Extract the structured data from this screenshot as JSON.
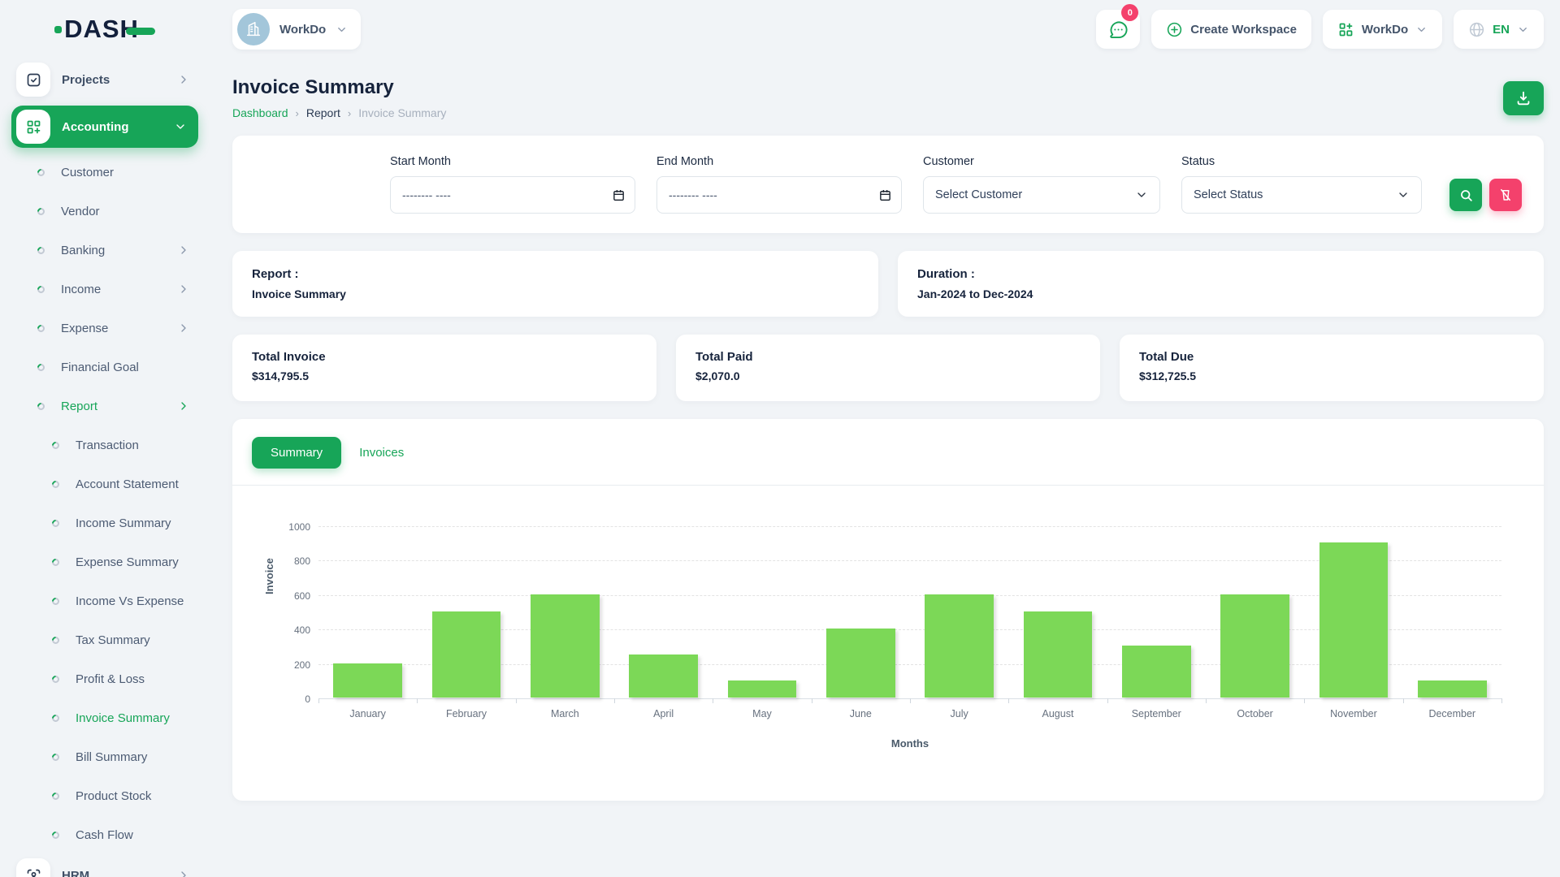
{
  "brand": {
    "name": "DASH"
  },
  "header": {
    "workspace_switcher": {
      "label": "WorkDo"
    },
    "messages": {
      "badge": "0"
    },
    "create_workspace": {
      "label": "Create Workspace"
    },
    "app_switcher": {
      "label": "WorkDo"
    },
    "language": {
      "label": "EN"
    }
  },
  "page": {
    "title": "Invoice Summary",
    "breadcrumb": [
      "Dashboard",
      "Report",
      "Invoice Summary"
    ]
  },
  "filters": {
    "start_month": {
      "label": "Start Month",
      "placeholder": "-------- ----"
    },
    "end_month": {
      "label": "End Month",
      "placeholder": "-------- ----"
    },
    "customer": {
      "label": "Customer",
      "value": "Select Customer"
    },
    "status": {
      "label": "Status",
      "value": "Select Status"
    }
  },
  "info_cards": {
    "report": {
      "label": "Report :",
      "value": "Invoice Summary"
    },
    "duration": {
      "label": "Duration :",
      "value": "Jan-2024 to Dec-2024"
    }
  },
  "totals": [
    {
      "label": "Total Invoice",
      "value": "$314,795.5"
    },
    {
      "label": "Total Paid",
      "value": "$2,070.0"
    },
    {
      "label": "Total Due",
      "value": "$312,725.5"
    }
  ],
  "tabs": [
    {
      "label": "Summary",
      "active": true
    },
    {
      "label": "Invoices",
      "active": false
    }
  ],
  "sidebar": {
    "items": [
      {
        "label": "Projects",
        "level": 0,
        "icon": "checkbox-icon",
        "chevron": "right",
        "active": false
      },
      {
        "label": "Accounting",
        "level": 0,
        "icon": "grid-plus-icon",
        "chevron": "down",
        "active": true
      },
      {
        "label": "Customer",
        "level": 1,
        "chevron": null,
        "active": false
      },
      {
        "label": "Vendor",
        "level": 1,
        "chevron": null,
        "active": false
      },
      {
        "label": "Banking",
        "level": 1,
        "chevron": "right",
        "active": false
      },
      {
        "label": "Income",
        "level": 1,
        "chevron": "right",
        "active": false
      },
      {
        "label": "Expense",
        "level": 1,
        "chevron": "right",
        "active": false
      },
      {
        "label": "Financial Goal",
        "level": 1,
        "chevron": null,
        "active": false
      },
      {
        "label": "Report",
        "level": 1,
        "chevron": "right",
        "active": true
      },
      {
        "label": "Transaction",
        "level": 2,
        "chevron": null,
        "active": false
      },
      {
        "label": "Account Statement",
        "level": 2,
        "chevron": null,
        "active": false
      },
      {
        "label": "Income Summary",
        "level": 2,
        "chevron": null,
        "active": false
      },
      {
        "label": "Expense Summary",
        "level": 2,
        "chevron": null,
        "active": false
      },
      {
        "label": "Income Vs Expense",
        "level": 2,
        "chevron": null,
        "active": false
      },
      {
        "label": "Tax Summary",
        "level": 2,
        "chevron": null,
        "active": false
      },
      {
        "label": "Profit & Loss",
        "level": 2,
        "chevron": null,
        "active": false
      },
      {
        "label": "Invoice Summary",
        "level": 2,
        "chevron": null,
        "active": true
      },
      {
        "label": "Bill Summary",
        "level": 2,
        "chevron": null,
        "active": false
      },
      {
        "label": "Product Stock",
        "level": 2,
        "chevron": null,
        "active": false
      },
      {
        "label": "Cash Flow",
        "level": 2,
        "chevron": null,
        "active": false
      },
      {
        "label": "HRM",
        "level": 0,
        "icon": "user-scan-icon",
        "chevron": "right",
        "active": false
      }
    ]
  },
  "chart_data": {
    "type": "bar",
    "categories": [
      "January",
      "February",
      "March",
      "April",
      "May",
      "June",
      "July",
      "August",
      "September",
      "October",
      "November",
      "December"
    ],
    "values": [
      200,
      500,
      600,
      250,
      100,
      400,
      600,
      500,
      300,
      600,
      900,
      100
    ],
    "title": "",
    "xlabel": "Months",
    "ylabel": "Invoice",
    "ylim": [
      0,
      1000
    ],
    "yticks": [
      0,
      200,
      400,
      600,
      800,
      1000
    ],
    "grid": true,
    "legend": false,
    "bar_color": "#7cd857"
  },
  "colors": {
    "primary_green": "#17a558",
    "accent_pink": "#f4416c",
    "bar_green": "#7cd857",
    "text_dark": "#16233c",
    "background": "#f1f4f7"
  }
}
